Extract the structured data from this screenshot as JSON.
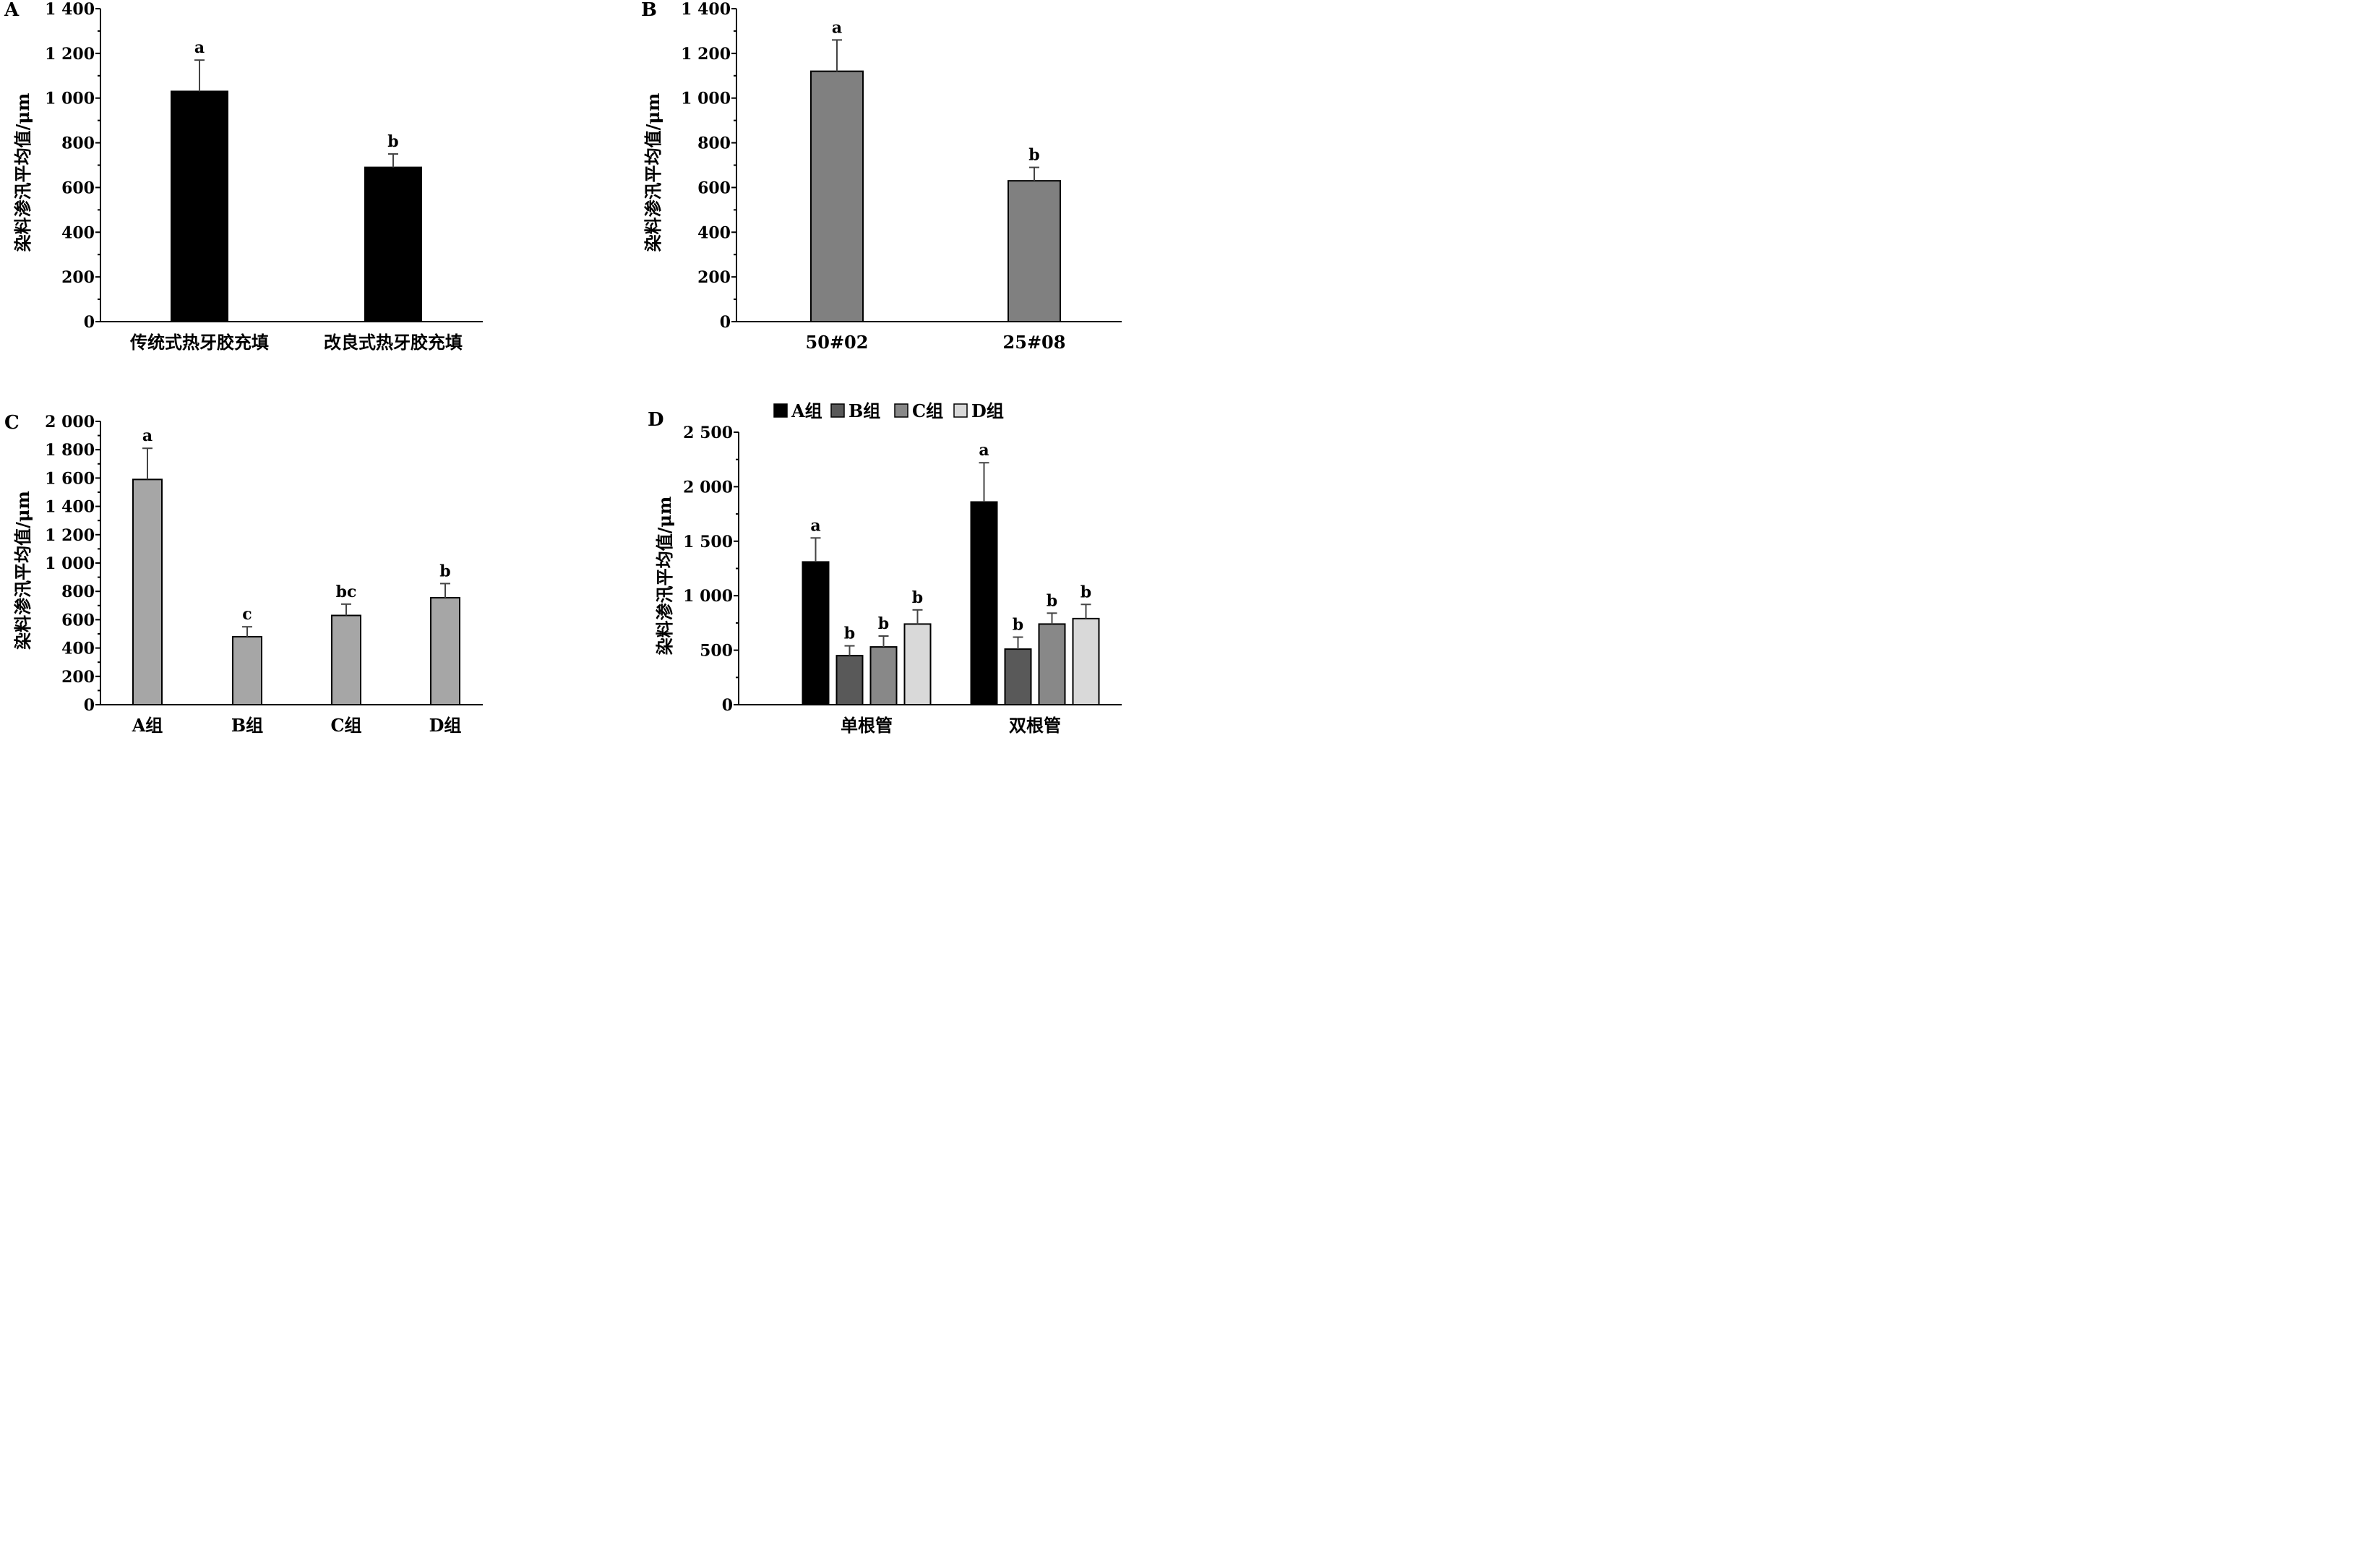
{
  "chart_data": [
    {
      "panel": "A",
      "type": "bar",
      "ylabel": "染料渗汛平均值/μm",
      "ylim": [
        0,
        1400
      ],
      "yticks": [
        "0",
        "200",
        "400",
        "600",
        "800",
        "1 000",
        "1 200",
        "1 400"
      ],
      "categories": [
        "传统式热牙胶充填",
        "改良式热牙胶充填"
      ],
      "series": [
        {
          "values": [
            1030,
            690
          ],
          "errors": [
            140,
            60
          ],
          "labels": [
            "a",
            "b"
          ],
          "color": "#000000"
        }
      ]
    },
    {
      "panel": "B",
      "type": "bar",
      "ylabel": "染料渗汛平均值/μm",
      "ylim": [
        0,
        1400
      ],
      "yticks": [
        "0",
        "200",
        "400",
        "600",
        "800",
        "1 000",
        "1 200",
        "1 400"
      ],
      "categories": [
        "50#02",
        "25#08"
      ],
      "series": [
        {
          "values": [
            1120,
            630
          ],
          "errors": [
            140,
            60
          ],
          "labels": [
            "a",
            "b"
          ],
          "color": "#808080"
        }
      ]
    },
    {
      "panel": "C",
      "type": "bar",
      "ylabel": "染料渗汛平均值/μm",
      "ylim": [
        0,
        2000
      ],
      "yticks": [
        "0",
        "200",
        "400",
        "600",
        "800",
        "1 000",
        "1 200",
        "1 400",
        "1 600",
        "1 800",
        "2 000"
      ],
      "categories": [
        "A组",
        "B组",
        "C组",
        "D组"
      ],
      "series": [
        {
          "values": [
            1590,
            480,
            630,
            755
          ],
          "errors": [
            220,
            70,
            80,
            100
          ],
          "labels": [
            "a",
            "c",
            "bc",
            "b"
          ],
          "color": "#a6a6a6"
        }
      ]
    },
    {
      "panel": "D",
      "type": "bar",
      "ylabel": "染料渗汛平均值/μm",
      "ylim": [
        0,
        2500
      ],
      "yticks": [
        "0",
        "500",
        "1 000",
        "1 500",
        "2 000",
        "2 500"
      ],
      "categories": [
        "单根管",
        "双根管"
      ],
      "legend_position": "top",
      "series": [
        {
          "name": "A组",
          "values": [
            1310,
            1860
          ],
          "errors": [
            220,
            360
          ],
          "labels": [
            "a",
            "a"
          ],
          "color": "#000000"
        },
        {
          "name": "B组",
          "values": [
            450,
            510
          ],
          "errors": [
            90,
            110
          ],
          "labels": [
            "b",
            "b"
          ],
          "color": "#595959"
        },
        {
          "name": "C组",
          "values": [
            530,
            740
          ],
          "errors": [
            100,
            100
          ],
          "labels": [
            "b",
            "b"
          ],
          "color": "#888888"
        },
        {
          "name": "D组",
          "values": [
            740,
            790
          ],
          "errors": [
            130,
            130
          ],
          "labels": [
            "b",
            "b"
          ],
          "color": "#d9d9d9"
        }
      ]
    }
  ]
}
